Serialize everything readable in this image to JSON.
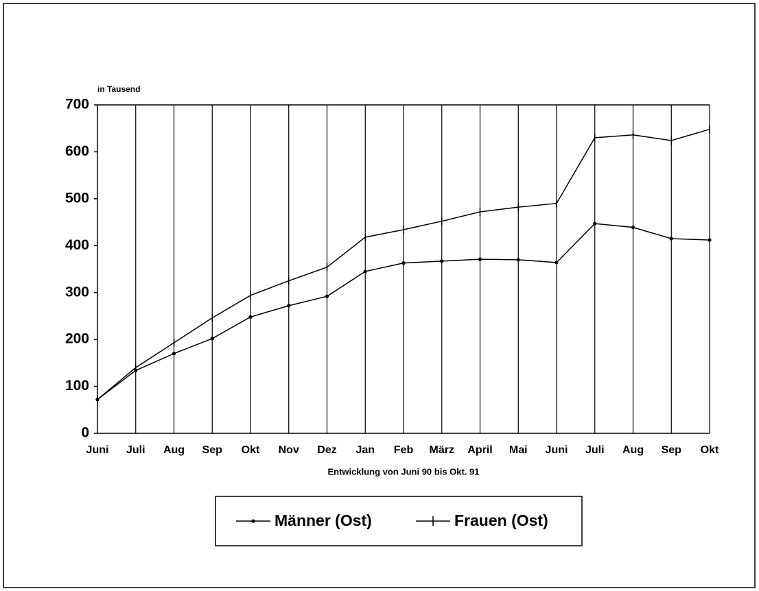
{
  "chart_data": {
    "type": "line",
    "y_label": "in Tausend",
    "x_label": "Entwicklung von Juni 90 bis Okt. 91",
    "categories": [
      "Juni",
      "Juli",
      "Aug",
      "Sep",
      "Okt",
      "Nov",
      "Dez",
      "Jan",
      "Feb",
      "März",
      "April",
      "Mai",
      "Juni",
      "Juli",
      "Aug",
      "Sep",
      "Okt"
    ],
    "series": [
      {
        "name": "Männer (Ost)",
        "color": "#000000",
        "marker": "dot",
        "values": [
          72,
          134,
          170,
          202,
          248,
          272,
          292,
          345,
          363,
          367,
          371,
          370,
          364,
          447,
          439,
          415,
          412
        ]
      },
      {
        "name": "Frauen (Ost)",
        "color": "#000000",
        "marker": "plus",
        "values": [
          72,
          140,
          193,
          246,
          294,
          325,
          354,
          418,
          434,
          452,
          472,
          482,
          490,
          630,
          636,
          624,
          648
        ]
      }
    ],
    "ylim": [
      0,
      700
    ],
    "yticks": [
      0,
      100,
      200,
      300,
      400,
      500,
      600,
      700
    ],
    "grid": "x",
    "legend": "bottom"
  }
}
